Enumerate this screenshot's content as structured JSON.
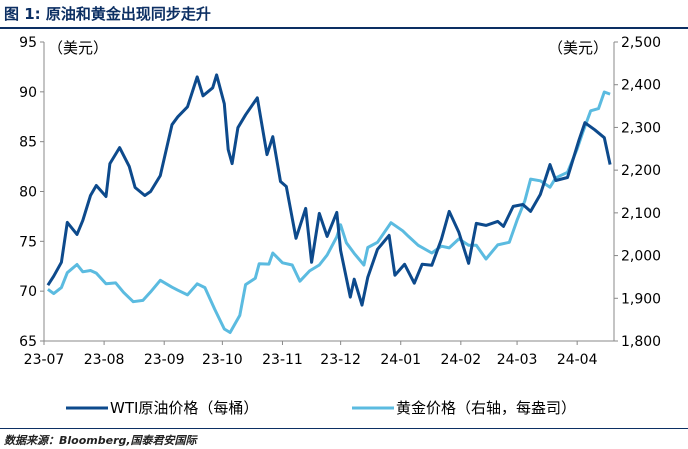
{
  "header": {
    "title": "图 1: 原油和黄金出现同步走升"
  },
  "footer": {
    "source": "数据来源：Bloomberg,国泰君安国际"
  },
  "chart_data": {
    "type": "line",
    "title": "图 1: 原油和黄金出现同步走升",
    "left_unit": "（美元）",
    "right_unit": "（美元）",
    "x_tick_labels": [
      "23-07",
      "23-08",
      "23-09",
      "23-10",
      "23-11",
      "23-12",
      "24-01",
      "24-02",
      "24-03",
      "24-04"
    ],
    "y_left": {
      "range": [
        65,
        95
      ],
      "ticks": [
        "65",
        "70",
        "75",
        "80",
        "85",
        "90",
        "95"
      ]
    },
    "y_right": {
      "range": [
        1800,
        2500
      ],
      "ticks": [
        "1,800",
        "1,900",
        "2,000",
        "2,100",
        "2,200",
        "2,300",
        "2,400",
        "2,500"
      ]
    },
    "legend_placement": "bottom",
    "series": [
      {
        "name": "WTI原油价格（每桶）",
        "axis": "left",
        "color": "#0d4a8c",
        "points": [
          [
            "2023-07-03",
            70.6
          ],
          [
            "2023-07-06",
            71.5
          ],
          [
            "2023-07-10",
            72.9
          ],
          [
            "2023-07-13",
            76.9
          ],
          [
            "2023-07-18",
            75.7
          ],
          [
            "2023-07-21",
            77.1
          ],
          [
            "2023-07-25",
            79.6
          ],
          [
            "2023-07-28",
            80.6
          ],
          [
            "2023-08-02",
            79.5
          ],
          [
            "2023-08-04",
            82.8
          ],
          [
            "2023-08-09",
            84.4
          ],
          [
            "2023-08-14",
            82.5
          ],
          [
            "2023-08-17",
            80.4
          ],
          [
            "2023-08-22",
            79.6
          ],
          [
            "2023-08-25",
            80.0
          ],
          [
            "2023-08-30",
            81.6
          ],
          [
            "2023-09-05",
            86.7
          ],
          [
            "2023-09-08",
            87.5
          ],
          [
            "2023-09-13",
            88.5
          ],
          [
            "2023-09-18",
            91.5
          ],
          [
            "2023-09-21",
            89.6
          ],
          [
            "2023-09-26",
            90.4
          ],
          [
            "2023-09-28",
            91.7
          ],
          [
            "2023-10-02",
            88.8
          ],
          [
            "2023-10-04",
            84.2
          ],
          [
            "2023-10-06",
            82.8
          ],
          [
            "2023-10-09",
            86.4
          ],
          [
            "2023-10-13",
            87.7
          ],
          [
            "2023-10-19",
            89.4
          ],
          [
            "2023-10-24",
            83.7
          ],
          [
            "2023-10-27",
            85.5
          ],
          [
            "2023-10-31",
            81.0
          ],
          [
            "2023-11-03",
            80.5
          ],
          [
            "2023-11-08",
            75.3
          ],
          [
            "2023-11-13",
            78.3
          ],
          [
            "2023-11-16",
            72.9
          ],
          [
            "2023-11-20",
            77.8
          ],
          [
            "2023-11-24",
            75.5
          ],
          [
            "2023-11-29",
            77.9
          ],
          [
            "2023-12-01",
            74.1
          ],
          [
            "2023-12-06",
            69.4
          ],
          [
            "2023-12-08",
            71.2
          ],
          [
            "2023-12-12",
            68.6
          ],
          [
            "2023-12-15",
            71.4
          ],
          [
            "2023-12-20",
            74.2
          ],
          [
            "2023-12-26",
            75.6
          ],
          [
            "2023-12-29",
            71.6
          ],
          [
            "2024-01-03",
            72.7
          ],
          [
            "2024-01-08",
            70.8
          ],
          [
            "2024-01-12",
            72.7
          ],
          [
            "2024-01-17",
            72.6
          ],
          [
            "2024-01-22",
            75.2
          ],
          [
            "2024-01-26",
            78.0
          ],
          [
            "2024-01-31",
            75.9
          ],
          [
            "2024-02-05",
            72.8
          ],
          [
            "2024-02-09",
            76.8
          ],
          [
            "2024-02-14",
            76.6
          ],
          [
            "2024-02-20",
            77.0
          ],
          [
            "2024-02-23",
            76.5
          ],
          [
            "2024-02-28",
            78.5
          ],
          [
            "2024-03-04",
            78.7
          ],
          [
            "2024-03-08",
            78.0
          ],
          [
            "2024-03-13",
            79.7
          ],
          [
            "2024-03-18",
            82.7
          ],
          [
            "2024-03-21",
            81.1
          ],
          [
            "2024-03-27",
            81.4
          ],
          [
            "2024-04-02",
            85.2
          ],
          [
            "2024-04-05",
            86.9
          ],
          [
            "2024-04-10",
            86.2
          ],
          [
            "2024-04-15",
            85.4
          ],
          [
            "2024-04-18",
            82.7
          ]
        ]
      },
      {
        "name": "黄金价格（右轴，每盎司）",
        "axis": "right",
        "color": "#5bbbe0",
        "points": [
          [
            "2023-07-03",
            1921
          ],
          [
            "2023-07-06",
            1911
          ],
          [
            "2023-07-10",
            1925
          ],
          [
            "2023-07-13",
            1960
          ],
          [
            "2023-07-18",
            1979
          ],
          [
            "2023-07-21",
            1962
          ],
          [
            "2023-07-25",
            1965
          ],
          [
            "2023-07-28",
            1959
          ],
          [
            "2023-08-02",
            1934
          ],
          [
            "2023-08-07",
            1936
          ],
          [
            "2023-08-11",
            1914
          ],
          [
            "2023-08-16",
            1892
          ],
          [
            "2023-08-21",
            1895
          ],
          [
            "2023-08-25",
            1915
          ],
          [
            "2023-08-30",
            1942
          ],
          [
            "2023-09-05",
            1926
          ],
          [
            "2023-09-08",
            1919
          ],
          [
            "2023-09-13",
            1908
          ],
          [
            "2023-09-18",
            1934
          ],
          [
            "2023-09-22",
            1925
          ],
          [
            "2023-09-27",
            1875
          ],
          [
            "2023-10-02",
            1828
          ],
          [
            "2023-10-05",
            1820
          ],
          [
            "2023-10-10",
            1860
          ],
          [
            "2023-10-13",
            1932
          ],
          [
            "2023-10-18",
            1947
          ],
          [
            "2023-10-20",
            1981
          ],
          [
            "2023-10-25",
            1980
          ],
          [
            "2023-10-27",
            2006
          ],
          [
            "2023-11-01",
            1983
          ],
          [
            "2023-11-06",
            1978
          ],
          [
            "2023-11-10",
            1940
          ],
          [
            "2023-11-15",
            1964
          ],
          [
            "2023-11-20",
            1978
          ],
          [
            "2023-11-24",
            2001
          ],
          [
            "2023-11-29",
            2044
          ],
          [
            "2023-12-01",
            2072
          ],
          [
            "2023-12-04",
            2030
          ],
          [
            "2023-12-08",
            2005
          ],
          [
            "2023-12-13",
            1978
          ],
          [
            "2023-12-15",
            2019
          ],
          [
            "2023-12-20",
            2031
          ],
          [
            "2023-12-27",
            2077
          ],
          [
            "2024-01-02",
            2058
          ],
          [
            "2024-01-05",
            2045
          ],
          [
            "2024-01-10",
            2024
          ],
          [
            "2024-01-17",
            2006
          ],
          [
            "2024-01-22",
            2022
          ],
          [
            "2024-01-26",
            2018
          ],
          [
            "2024-01-31",
            2039
          ],
          [
            "2024-02-05",
            2024
          ],
          [
            "2024-02-09",
            2024
          ],
          [
            "2024-02-14",
            1992
          ],
          [
            "2024-02-20",
            2025
          ],
          [
            "2024-02-26",
            2031
          ],
          [
            "2024-03-01",
            2083
          ],
          [
            "2024-03-05",
            2128
          ],
          [
            "2024-03-08",
            2179
          ],
          [
            "2024-03-13",
            2175
          ],
          [
            "2024-03-18",
            2160
          ],
          [
            "2024-03-21",
            2182
          ],
          [
            "2024-03-27",
            2195
          ],
          [
            "2024-04-01",
            2250
          ],
          [
            "2024-04-04",
            2290
          ],
          [
            "2024-04-08",
            2339
          ],
          [
            "2024-04-12",
            2344
          ],
          [
            "2024-04-15",
            2383
          ],
          [
            "2024-04-18",
            2378
          ]
        ]
      }
    ]
  }
}
